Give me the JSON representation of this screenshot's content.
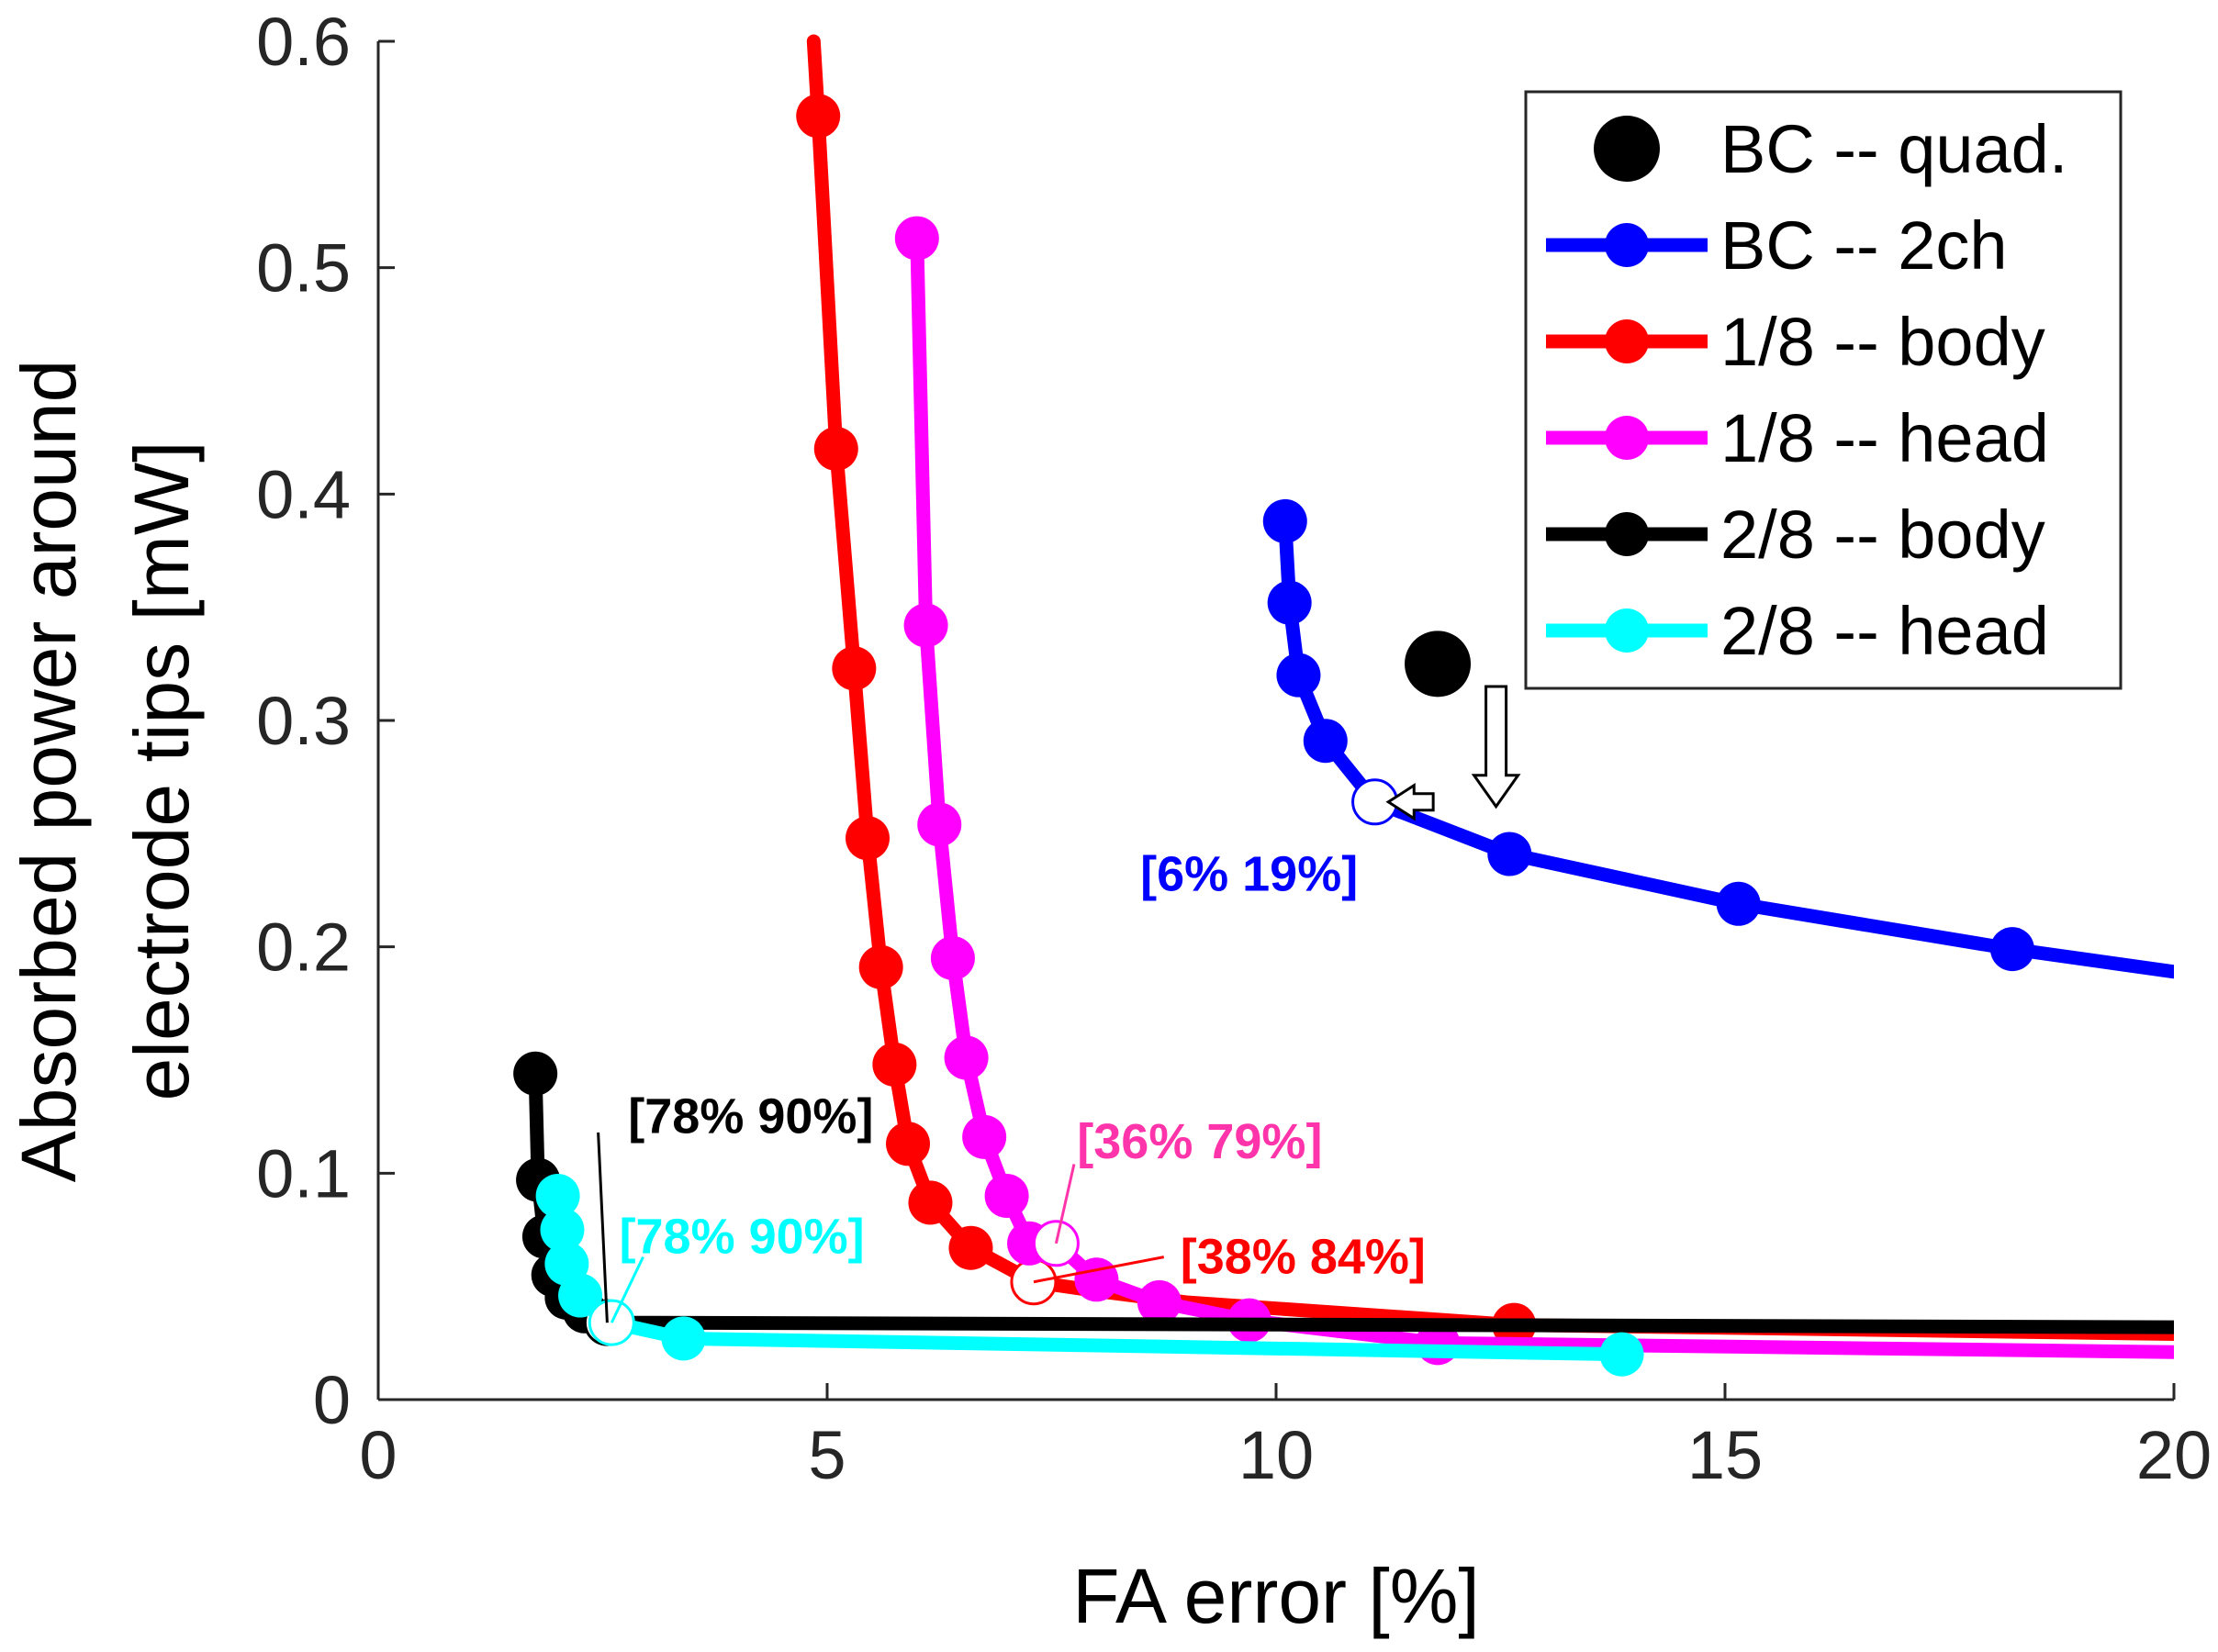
{
  "chart_data": {
    "type": "line",
    "xlabel": "FA error [%]",
    "ylabel_lines": [
      "Absorbed power around",
      "electrode tips [mW]"
    ],
    "xlim": [
      0,
      20
    ],
    "ylim": [
      0,
      0.6
    ],
    "xticks": [
      0,
      5,
      10,
      15,
      20
    ],
    "xtick_labels": [
      "0",
      "5",
      "10",
      "15",
      "20"
    ],
    "yticks": [
      0,
      0.1,
      0.2,
      0.3,
      0.4,
      0.5,
      0.6
    ],
    "ytick_labels": [
      "0",
      "0.1",
      "0.2",
      "0.3",
      "0.4",
      "0.5",
      "0.6"
    ],
    "grid": false,
    "legend_position": "top-right",
    "series": [
      {
        "name": "BC -- quad.",
        "color": "#000000",
        "line": false,
        "x": [
          11.8
        ],
        "y": [
          0.325
        ]
      },
      {
        "name": "BC -- 2ch",
        "color": "#0000ff",
        "line": true,
        "x": [
          10.1,
          10.15,
          10.25,
          10.55,
          11.1,
          12.6,
          15.15,
          18.2,
          20.0
        ],
        "y": [
          0.388,
          0.352,
          0.32,
          0.291,
          0.264,
          0.241,
          0.219,
          0.199,
          0.189
        ],
        "markers": [
          0,
          1,
          2,
          3,
          5,
          6,
          7
        ],
        "open_markers": [
          4
        ]
      },
      {
        "name": "1/8 -- body",
        "color": "#ff0000",
        "line": true,
        "x": [
          4.85,
          4.9,
          5.1,
          5.3,
          5.45,
          5.6,
          5.75,
          5.9,
          6.15,
          6.6,
          7.3,
          8.0,
          9.0,
          12.65,
          20.0
        ],
        "y": [
          0.6,
          0.567,
          0.42,
          0.323,
          0.248,
          0.191,
          0.148,
          0.113,
          0.087,
          0.067,
          0.052,
          0.048,
          0.043,
          0.033,
          0.029
        ],
        "markers": [
          1,
          2,
          3,
          4,
          5,
          6,
          7,
          8,
          9,
          13
        ],
        "open_markers": [
          10
        ]
      },
      {
        "name": "1/8 -- head",
        "color": "#ff00ff",
        "line": true,
        "x": [
          6.0,
          6.1,
          6.25,
          6.4,
          6.55,
          6.75,
          7.0,
          7.25,
          7.55,
          8.0,
          8.7,
          9.7,
          11.8,
          20.0
        ],
        "y": [
          0.513,
          0.342,
          0.254,
          0.195,
          0.151,
          0.116,
          0.09,
          0.069,
          0.069,
          0.053,
          0.043,
          0.035,
          0.025,
          0.021
        ],
        "markers": [
          0,
          1,
          2,
          3,
          4,
          5,
          6,
          7,
          9,
          10,
          11,
          12
        ],
        "open_markers": [
          8
        ]
      },
      {
        "name": "2/8 -- body",
        "color": "#000000",
        "line": true,
        "x": [
          1.75,
          1.78,
          1.85,
          1.95,
          2.1,
          2.3,
          2.55,
          20.0
        ],
        "y": [
          0.144,
          0.097,
          0.072,
          0.055,
          0.045,
          0.039,
          0.034,
          0.032
        ],
        "markers": [
          0,
          1,
          2,
          3,
          4,
          5
        ],
        "open_markers": [
          6
        ]
      },
      {
        "name": "2/8 -- head",
        "color": "#00ffff",
        "line": true,
        "x": [
          2.0,
          2.05,
          2.1,
          2.25,
          2.6,
          3.4,
          13.85
        ],
        "y": [
          0.09,
          0.075,
          0.06,
          0.046,
          0.034,
          0.027,
          0.02
        ],
        "markers": [
          0,
          1,
          2,
          3,
          5,
          6
        ],
        "open_markers": [
          4
        ]
      }
    ],
    "annotations": [
      {
        "text": "[6% 19%]",
        "color": "#0000ff",
        "x": 9.7,
        "y": 0.232,
        "tx": 11.1,
        "ty": 0.264,
        "leader": false
      },
      {
        "text": "[78% 90%]",
        "color": "#000000",
        "x": 4.15,
        "y": 0.125,
        "tx": 2.55,
        "ty": 0.034,
        "leader": true,
        "lx": 2.45,
        "ly": 0.118
      },
      {
        "text": "[78% 90%]",
        "color": "#00ffff",
        "x": 4.05,
        "y": 0.072,
        "tx": 2.6,
        "ty": 0.034,
        "leader": true,
        "lx": 2.95,
        "ly": 0.063
      },
      {
        "text": "[36% 79%]",
        "color": "#ff33aa",
        "x": 9.15,
        "y": 0.114,
        "tx": 7.55,
        "ty": 0.069,
        "leader": true,
        "lx": 7.75,
        "ly": 0.104
      },
      {
        "text": "[38% 84%]",
        "color": "#ff0000",
        "x": 10.3,
        "y": 0.063,
        "tx": 7.3,
        "ty": 0.052,
        "leader": true,
        "lx": 8.75,
        "ly": 0.063
      }
    ],
    "callout_arrows": [
      {
        "from_x": 12.45,
        "from_y": 0.315,
        "to_x": 12.45,
        "to_y": 0.262,
        "direction": "down"
      },
      {
        "from_x": 11.75,
        "from_y": 0.264,
        "to_x": 11.25,
        "to_y": 0.264,
        "direction": "left"
      }
    ]
  }
}
